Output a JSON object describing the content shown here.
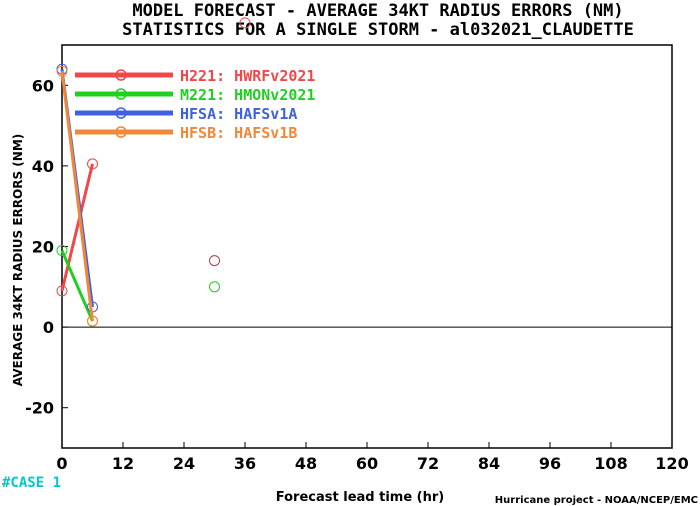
{
  "chart_data": {
    "type": "line",
    "title": "MODEL FORECAST - AVERAGE 34KT RADIUS ERRORS (NM)",
    "subtitle": "STATISTICS FOR A SINGLE STORM - al032021_CLAUDETTE",
    "xlabel": "Forecast lead time (hr)",
    "ylabel": "AVERAGE 34KT RADIUS ERRORS (NM)",
    "xlim": [
      0,
      120
    ],
    "ylim": [
      -30,
      70
    ],
    "xticks": [
      0,
      12,
      24,
      36,
      48,
      60,
      72,
      84,
      96,
      108,
      120
    ],
    "yticks": [
      -20,
      0,
      20,
      40,
      60
    ],
    "zero_line": true,
    "legend_position": "top-left",
    "series": [
      {
        "name": "H221: HWRFv2021",
        "color": "#f04848",
        "x": [
          0,
          6
        ],
        "y": [
          9,
          40.5
        ]
      },
      {
        "name": "M221: HMONv2021",
        "color": "#20d020",
        "x": [
          0,
          6
        ],
        "y": [
          19,
          1.5
        ]
      },
      {
        "name": "HFSA: HAFSv1A",
        "color": "#4060e0",
        "x": [
          0,
          6
        ],
        "y": [
          64,
          5
        ]
      },
      {
        "name": "HFSB: HAFSv1B",
        "color": "#f08838",
        "x": [
          0,
          6
        ],
        "y": [
          63.5,
          1.5
        ]
      }
    ],
    "isolated_points": [
      {
        "x": 30,
        "y": 16.5,
        "color": "#a04040"
      },
      {
        "x": 30,
        "y": 10,
        "color": "#20d020"
      },
      {
        "x": 36,
        "y": 75.5,
        "color": "#f04848"
      }
    ]
  },
  "case_label": "#CASE  1",
  "credit": "Hurricane project - NOAA/NCEP/EMC"
}
